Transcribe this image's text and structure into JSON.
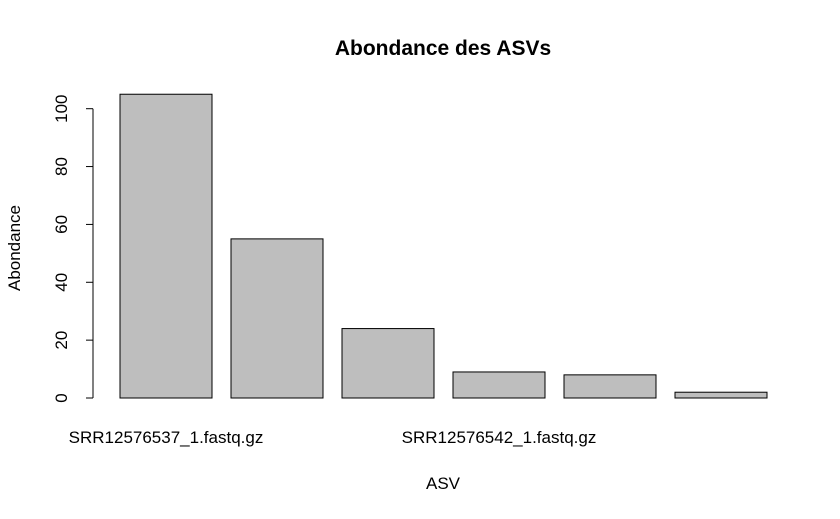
{
  "chart_data": {
    "type": "bar",
    "title": "Abondance des ASVs",
    "xlabel": "ASV",
    "ylabel": "Abondance",
    "categories": [
      "SRR12576537_1.fastq.gz",
      "",
      "",
      "SRR12576542_1.fastq.gz",
      "",
      ""
    ],
    "x_tick_labels": [
      "SRR12576537_1.fastq.gz",
      "SRR12576542_1.fastq.gz"
    ],
    "values": [
      105,
      55,
      24,
      9,
      8,
      2
    ],
    "y_ticks": [
      0,
      20,
      40,
      60,
      80,
      100
    ],
    "ylim": [
      0,
      105
    ],
    "grid": false,
    "legend": "none",
    "colors": {
      "bar_fill": "#bebebe",
      "bar_stroke": "#000000",
      "axis": "#000000",
      "background": "#ffffff"
    }
  }
}
